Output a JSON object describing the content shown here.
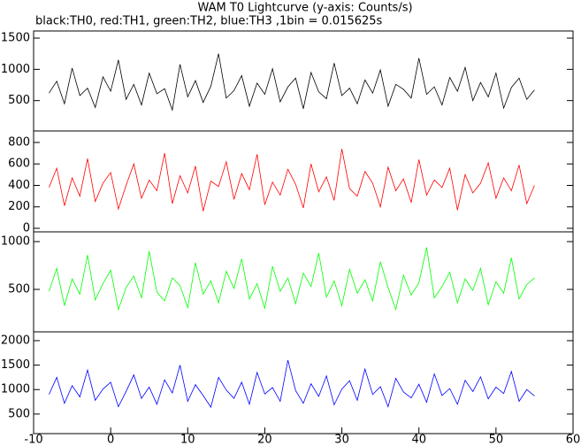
{
  "title": "WAM T0 Lightcurve (y-axis: Counts/s)",
  "subtitle": "black:TH0, red:TH1, green:TH2, blue:TH3 ,1bin = 0.015625s",
  "chart_data": [
    {
      "type": "line",
      "xlim": [
        -10,
        60
      ],
      "ylim": [
        14,
        1614
      ],
      "yticks": [
        500,
        1000,
        1500
      ],
      "x": [
        -8,
        -7,
        -6,
        -5,
        -4,
        -3,
        -2,
        -1,
        0,
        1,
        2,
        3,
        4,
        5,
        6,
        7,
        8,
        9,
        10,
        11,
        12,
        13,
        14,
        15,
        16,
        17,
        18,
        19,
        20,
        21,
        22,
        23,
        24,
        25,
        26,
        27,
        28,
        29,
        30,
        31,
        32,
        33,
        34,
        35,
        36,
        37,
        38,
        39,
        40,
        41,
        42,
        43,
        44,
        45,
        46,
        47,
        48,
        49,
        50,
        51,
        52,
        53,
        54,
        55
      ],
      "series": [
        {
          "color": "#000000",
          "values": [
            620,
            810,
            450,
            1020,
            580,
            700,
            390,
            880,
            650,
            1150,
            520,
            760,
            430,
            940,
            610,
            690,
            350,
            1080,
            560,
            820,
            470,
            730,
            1250,
            540,
            660,
            900,
            410,
            780,
            600,
            1010,
            480,
            720,
            860,
            370,
            950,
            640,
            530,
            1100,
            580,
            700,
            450,
            830,
            620,
            990,
            410,
            760,
            680,
            540,
            1180,
            600,
            720,
            430,
            870,
            650,
            1030,
            500,
            790,
            560,
            940,
            380,
            710,
            860,
            520,
            670
          ]
        }
      ]
    },
    {
      "type": "line",
      "xlim": [
        -10,
        60
      ],
      "ylim": [
        -33,
        907
      ],
      "yticks": [
        0,
        200,
        400,
        600,
        800
      ],
      "x": [
        -8,
        -7,
        -6,
        -5,
        -4,
        -3,
        -2,
        -1,
        0,
        1,
        2,
        3,
        4,
        5,
        6,
        7,
        8,
        9,
        10,
        11,
        12,
        13,
        14,
        15,
        16,
        17,
        18,
        19,
        20,
        21,
        22,
        23,
        24,
        25,
        26,
        27,
        28,
        29,
        30,
        31,
        32,
        33,
        34,
        35,
        36,
        37,
        38,
        39,
        40,
        41,
        42,
        43,
        44,
        45,
        46,
        47,
        48,
        49,
        50,
        51,
        52,
        53,
        54,
        55
      ],
      "series": [
        {
          "color": "#ff0000",
          "values": [
            380,
            560,
            210,
            470,
            300,
            650,
            250,
            420,
            520,
            180,
            400,
            600,
            280,
            450,
            350,
            700,
            230,
            490,
            330,
            580,
            160,
            440,
            390,
            620,
            270,
            510,
            360,
            690,
            220,
            430,
            310,
            550,
            410,
            190,
            600,
            340,
            480,
            260,
            740,
            370,
            300,
            530,
            420,
            200,
            570,
            350,
            460,
            240,
            640,
            310,
            450,
            380,
            560,
            170,
            500,
            330,
            420,
            610,
            280,
            470,
            350,
            590,
            230,
            400
          ]
        }
      ]
    },
    {
      "type": "line",
      "xlim": [
        -10,
        60
      ],
      "ylim": [
        56,
        1102
      ],
      "yticks": [
        500,
        1000
      ],
      "x": [
        -8,
        -7,
        -6,
        -5,
        -4,
        -3,
        -2,
        -1,
        0,
        1,
        2,
        3,
        4,
        5,
        6,
        7,
        8,
        9,
        10,
        11,
        12,
        13,
        14,
        15,
        16,
        17,
        18,
        19,
        20,
        21,
        22,
        23,
        24,
        25,
        26,
        27,
        28,
        29,
        30,
        31,
        32,
        33,
        34,
        35,
        36,
        37,
        38,
        39,
        40,
        41,
        42,
        43,
        44,
        45,
        46,
        47,
        48,
        49,
        50,
        51,
        52,
        53,
        54,
        55
      ],
      "series": [
        {
          "color": "#00ff00",
          "values": [
            480,
            720,
            330,
            610,
            450,
            860,
            390,
            560,
            700,
            290,
            520,
            640,
            410,
            900,
            470,
            380,
            620,
            540,
            310,
            780,
            450,
            590,
            360,
            690,
            510,
            820,
            400,
            560,
            300,
            740,
            480,
            620,
            350,
            670,
            530,
            880,
            420,
            590,
            330,
            710,
            460,
            600,
            380,
            790,
            520,
            290,
            650,
            440,
            570,
            940,
            410,
            530,
            680,
            360,
            610,
            490,
            720,
            340,
            580,
            460,
            830,
            400,
            550,
            620
          ]
        }
      ]
    },
    {
      "type": "line",
      "xlim": [
        -10,
        60
      ],
      "ylim": [
        100,
        2180
      ],
      "yticks": [
        500,
        1000,
        1500,
        2000
      ],
      "xticks": [
        -10,
        0,
        10,
        20,
        30,
        40,
        50,
        60
      ],
      "x": [
        -8,
        -7,
        -6,
        -5,
        -4,
        -3,
        -2,
        -1,
        0,
        1,
        2,
        3,
        4,
        5,
        6,
        7,
        8,
        9,
        10,
        11,
        12,
        13,
        14,
        15,
        16,
        17,
        18,
        19,
        20,
        21,
        22,
        23,
        24,
        25,
        26,
        27,
        28,
        29,
        30,
        31,
        32,
        33,
        34,
        35,
        36,
        37,
        38,
        39,
        40,
        41,
        42,
        43,
        44,
        45,
        46,
        47,
        48,
        49,
        50,
        51,
        52,
        53,
        54,
        55
      ],
      "series": [
        {
          "color": "#0000ff",
          "values": [
            900,
            1250,
            720,
            1080,
            850,
            1400,
            780,
            1010,
            1150,
            650,
            960,
            1300,
            820,
            1050,
            700,
            1200,
            930,
            1500,
            760,
            1100,
            880,
            640,
            1250,
            990,
            820,
            1150,
            700,
            1350,
            910,
            1040,
            760,
            1600,
            980,
            720,
            1120,
            860,
            1280,
            690,
            1010,
            1180,
            780,
            1420,
            900,
            1060,
            650,
            1230,
            950,
            830,
            1110,
            740,
            1320,
            880,
            1020,
            700,
            1190,
            960,
            1260,
            810,
            1050,
            920,
            1370,
            760,
            1000,
            870
          ]
        }
      ]
    }
  ]
}
